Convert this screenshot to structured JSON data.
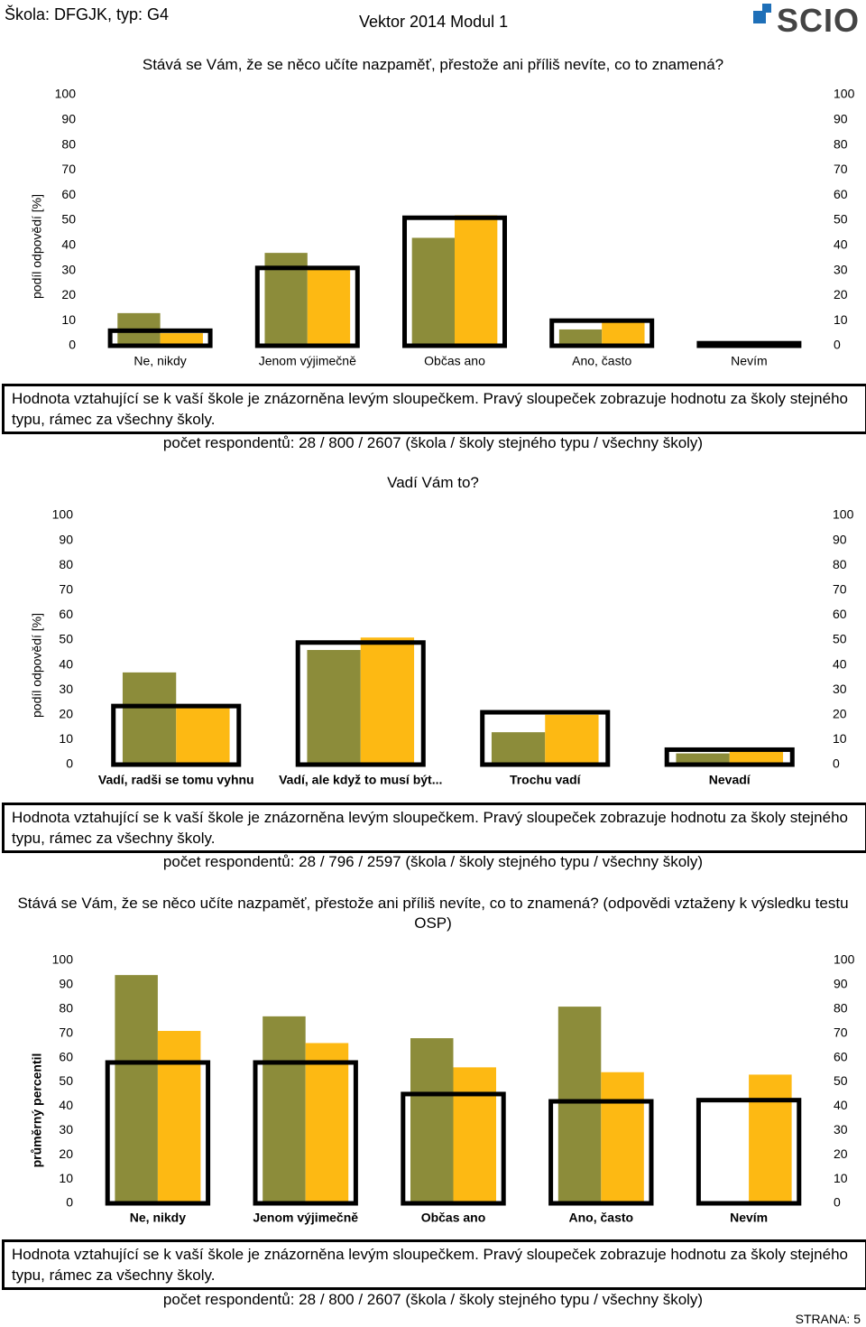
{
  "header": {
    "school": "Škola: DFGJK, typ: G4",
    "title": "Vektor 2014 Modul 1",
    "logo": "SCIO"
  },
  "chart_data": [
    {
      "type": "bar",
      "title": "Stává se Vám, že se něco učíte nazpaměť, přestože ani příliš nevíte, co to znamená?",
      "y_label": "podíl odpovědí [%]",
      "categories": [
        "Ne, nikdy",
        "Jenom výjimečně",
        "Občas ano",
        "Ano, často",
        "Nevím"
      ],
      "series": [
        {
          "color": "#8c8c3a",
          "values": [
            13,
            37,
            43,
            6.5,
            0
          ]
        },
        {
          "color": "#fdb913",
          "values": [
            5,
            31,
            52,
            10,
            0
          ]
        },
        {
          "color": "#000000",
          "outline": true,
          "values": [
            6,
            31,
            51,
            10,
            1
          ]
        }
      ],
      "ylim": [
        0,
        100
      ],
      "yticks": [
        0,
        10,
        20,
        30,
        40,
        50,
        60,
        70,
        80,
        90,
        100
      ],
      "note": "Hodnota vztahující se k vaší škole je znázorněna levým sloupečkem. Pravý sloupeček zobrazuje hodnotu za školy stejného typu, rámec za všechny školy.",
      "respondents": "počet respondentů: 28 / 800 / 2607 (škola / školy stejného typu / všechny školy)"
    },
    {
      "type": "bar",
      "title": "Vadí Vám to?",
      "y_label": "podíl odpovědí [%]",
      "categories": [
        "Vadí, radši se tomu vyhnu",
        "Vadí, ale když to musí být...",
        "Trochu vadí",
        "Nevadí"
      ],
      "series": [
        {
          "color": "#8c8c3a",
          "values": [
            37,
            46,
            13,
            4.5
          ]
        },
        {
          "color": "#fdb913",
          "values": [
            23,
            51,
            20,
            5.5
          ]
        },
        {
          "color": "#000000",
          "outline": true,
          "values": [
            23.5,
            49,
            21,
            6
          ]
        }
      ],
      "ylim": [
        0,
        100
      ],
      "yticks": [
        0,
        10,
        20,
        30,
        40,
        50,
        60,
        70,
        80,
        90,
        100
      ],
      "note": "Hodnota vztahující se k vaší škole je znázorněna levým sloupečkem. Pravý sloupeček zobrazuje hodnotu za školy stejného typu, rámec za všechny školy.",
      "respondents": "počet respondentů: 28 / 796 / 2597 (škola / školy stejného typu / všechny školy)"
    },
    {
      "type": "bar",
      "title": "Stává se Vám, že se něco učíte nazpaměť, přestože ani příliš nevíte, co to znamená? (odpovědi vztaženy k výsledku testu OSP)",
      "y_label": "průměrný percentil",
      "categories": [
        "Ne, nikdy",
        "Jenom výjimečně",
        "Občas ano",
        "Ano, často",
        "Nevím"
      ],
      "series": [
        {
          "color": "#8c8c3a",
          "values": [
            94,
            77,
            68,
            81,
            null
          ]
        },
        {
          "color": "#fdb913",
          "values": [
            71,
            66,
            56,
            54,
            53
          ]
        },
        {
          "color": "#000000",
          "outline": true,
          "values": [
            58,
            58,
            45,
            42,
            42.5
          ]
        }
      ],
      "ylim": [
        0,
        100
      ],
      "yticks": [
        0,
        10,
        20,
        30,
        40,
        50,
        60,
        70,
        80,
        90,
        100
      ],
      "note": "Hodnota vztahující se k vaší škole je znázorněna levým sloupečkem. Pravý sloupeček zobrazuje hodnotu za školy stejného typu, rámec za všechny školy.",
      "respondents": "počet respondentů: 28 / 800 / 2607 (škola / školy stejného typu / všechny školy)"
    }
  ],
  "footer": "STRANA: 5"
}
